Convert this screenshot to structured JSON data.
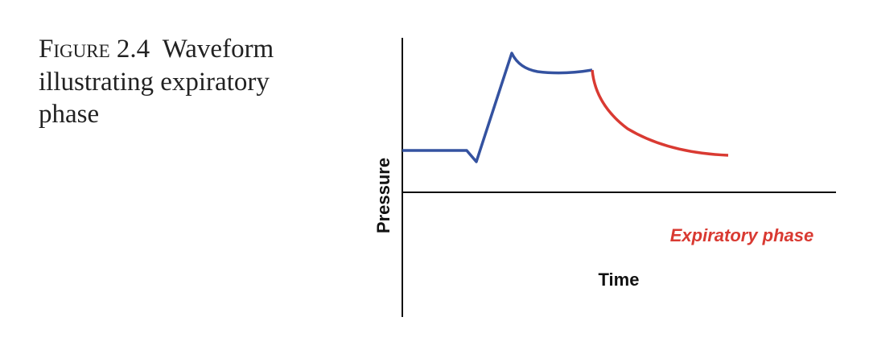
{
  "caption": {
    "label": "Figure 2.4",
    "lines": [
      "Waveform",
      "illustrating expiratory",
      "phase"
    ]
  },
  "diagram": {
    "y_axis_label": "Pressure",
    "x_axis_label": "Time",
    "annotation": "Expiratory phase"
  }
}
